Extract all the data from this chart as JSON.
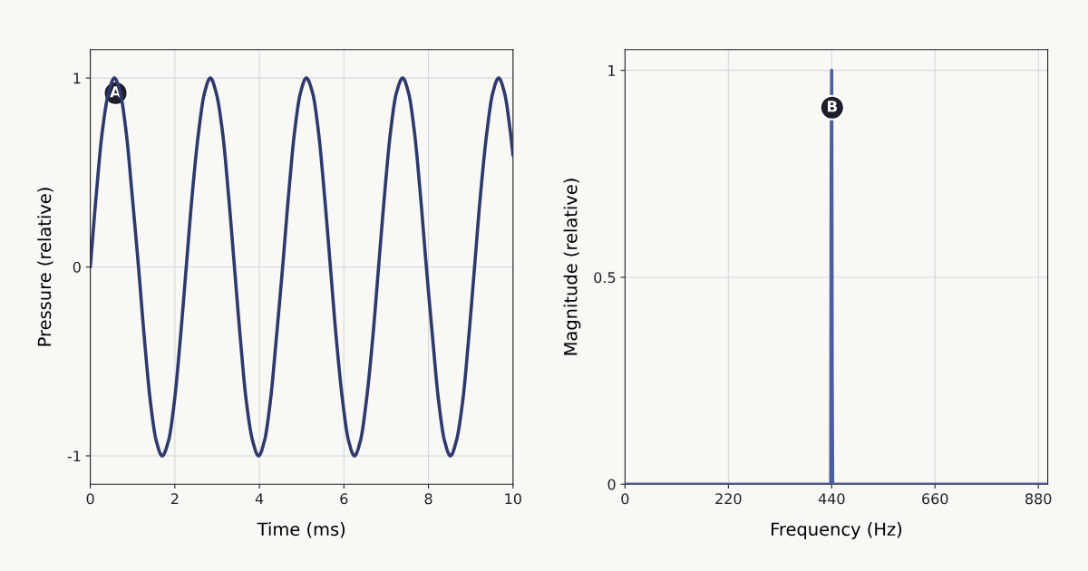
{
  "chart_data": [
    {
      "type": "line",
      "xlabel": "Time (ms)",
      "ylabel": "Pressure (relative)",
      "xlim": [
        0,
        10
      ],
      "ylim": [
        -1.15,
        1.15
      ],
      "xticks": [
        0,
        2,
        4,
        6,
        8,
        10
      ],
      "yticks": [
        -1,
        0,
        1
      ],
      "grid": true,
      "legend": false,
      "marker": "none",
      "line_style": "solid",
      "annotations": [
        {
          "text": "A",
          "x": 0.6,
          "y": 0.92
        }
      ],
      "series": [
        {
          "color": "#2e3a6e",
          "x": [
            0,
            0.14,
            0.28,
            0.43,
            0.57,
            0.71,
            0.85,
            0.99,
            1.14,
            1.28,
            1.42,
            1.56,
            1.7,
            1.85,
            1.99,
            2.13,
            2.27,
            2.41,
            2.56,
            2.7,
            2.84,
            2.98,
            3.13,
            3.27,
            3.41,
            3.55,
            3.69,
            3.84,
            3.98,
            4.12,
            4.26,
            4.4,
            4.55,
            4.69,
            4.83,
            4.97,
            5.11,
            5.26,
            5.4,
            5.54,
            5.68,
            5.82,
            5.97,
            6.11,
            6.25,
            6.39,
            6.53,
            6.68,
            6.82,
            6.96,
            7.1,
            7.24,
            7.39,
            7.53,
            7.67,
            7.81,
            7.95,
            8.1,
            8.24,
            8.38,
            8.52,
            8.66,
            8.81,
            8.95,
            9.09,
            9.23,
            9.38,
            9.52,
            9.66,
            9.8,
            9.94,
            10
          ],
          "values": [
            0,
            0.38,
            0.71,
            0.92,
            1,
            0.92,
            0.71,
            0.38,
            0,
            -0.38,
            -0.71,
            -0.92,
            -1,
            -0.92,
            -0.71,
            -0.38,
            0,
            0.38,
            0.71,
            0.92,
            1,
            0.92,
            0.71,
            0.38,
            0,
            -0.38,
            -0.71,
            -0.92,
            -1,
            -0.92,
            -0.71,
            -0.38,
            0,
            0.38,
            0.71,
            0.92,
            1,
            0.92,
            0.71,
            0.38,
            0,
            -0.38,
            -0.71,
            -0.92,
            -1,
            -0.92,
            -0.71,
            -0.38,
            0,
            0.38,
            0.71,
            0.92,
            1,
            0.92,
            0.71,
            0.38,
            0,
            -0.38,
            -0.71,
            -0.92,
            -1,
            -0.92,
            -0.71,
            -0.38,
            0,
            0.38,
            0.71,
            0.92,
            1,
            0.92,
            0.71,
            0.59
          ]
        }
      ]
    },
    {
      "type": "line",
      "xlabel": "Frequency (Hz)",
      "ylabel": "Magnitude (relative)",
      "xlim": [
        0,
        900
      ],
      "ylim": [
        0,
        1.05
      ],
      "xticks": [
        0,
        220,
        440,
        660,
        880
      ],
      "yticks": [
        0,
        0.5,
        1
      ],
      "grid": true,
      "legend": false,
      "marker": "none",
      "line_style": "solid",
      "annotations": [
        {
          "text": "B",
          "x": 441,
          "y": 0.91
        }
      ],
      "series": [
        {
          "color": "#4a5fa0",
          "x": [
            0,
            438,
            439,
            440,
            441,
            442,
            900
          ],
          "values": [
            0,
            0,
            0.75,
            1,
            0.25,
            0,
            0
          ]
        }
      ]
    }
  ]
}
